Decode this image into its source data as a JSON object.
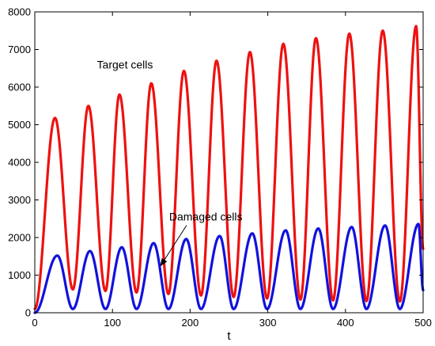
{
  "chart_data": {
    "type": "line",
    "title": "",
    "xlabel": "t",
    "ylabel": "",
    "xlim": [
      0,
      500
    ],
    "ylim": [
      0,
      8000
    ],
    "xticks": [
      0,
      100,
      200,
      300,
      400,
      500
    ],
    "yticks": [
      0,
      1000,
      2000,
      3000,
      4000,
      5000,
      6000,
      7000,
      8000
    ],
    "grid": false,
    "legend": "none",
    "series": [
      {
        "color": "#ee1111",
        "peaks": [
          [
            26,
            5180
          ],
          [
            69,
            5500
          ],
          [
            109,
            5800
          ],
          [
            150,
            6100
          ],
          [
            192,
            6430
          ],
          [
            234,
            6700
          ],
          [
            277,
            6930
          ],
          [
            320,
            7150
          ],
          [
            362,
            7300
          ],
          [
            405,
            7420
          ],
          [
            448,
            7500
          ],
          [
            491,
            7620
          ]
        ],
        "troughs": [
          [
            0,
            100
          ],
          [
            49,
            620
          ],
          [
            91,
            580
          ],
          [
            131,
            540
          ],
          [
            172,
            500
          ],
          [
            214,
            460
          ],
          [
            256,
            420
          ],
          [
            299,
            380
          ],
          [
            342,
            350
          ],
          [
            384,
            330
          ],
          [
            427,
            310
          ],
          [
            470,
            300
          ],
          [
            500,
            1700
          ]
        ]
      },
      {
        "color": "#1111dd",
        "peaks": [
          [
            29,
            1520
          ],
          [
            71,
            1640
          ],
          [
            112,
            1740
          ],
          [
            153,
            1850
          ],
          [
            195,
            1960
          ],
          [
            238,
            2040
          ],
          [
            280,
            2110
          ],
          [
            323,
            2190
          ],
          [
            365,
            2240
          ],
          [
            408,
            2280
          ],
          [
            451,
            2320
          ],
          [
            494,
            2360
          ]
        ],
        "troughs": [
          [
            0,
            0
          ],
          [
            49,
            100
          ],
          [
            91,
            100
          ],
          [
            131,
            100
          ],
          [
            172,
            100
          ],
          [
            214,
            100
          ],
          [
            256,
            100
          ],
          [
            299,
            100
          ],
          [
            342,
            100
          ],
          [
            384,
            100
          ],
          [
            427,
            100
          ],
          [
            470,
            100
          ],
          [
            500,
            600
          ]
        ]
      }
    ],
    "annotations": [
      {
        "text": "Target cells",
        "x": 80,
        "y": 6500
      },
      {
        "text": "Damaged cells",
        "x": 173,
        "y": 2450,
        "arrow_to": [
          162,
          1250
        ]
      }
    ]
  }
}
